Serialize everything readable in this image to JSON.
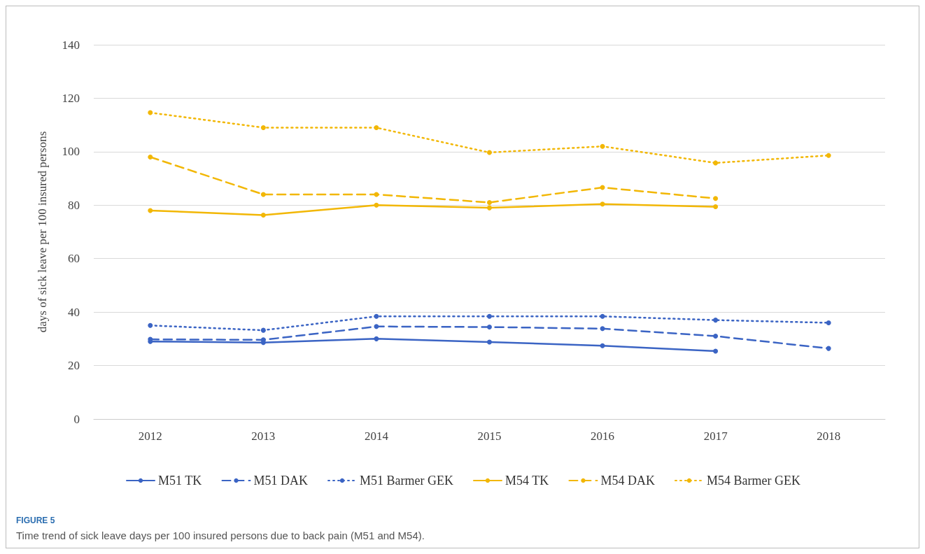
{
  "chart_data": {
    "type": "line",
    "title": "FIGURE 5",
    "subtitle": "Time trend of sick leave days per 100 insured persons due to back pain (M51 and M54).",
    "ylabel": "days of sick leave per 100 insured persons",
    "categories": [
      "2012",
      "2013",
      "2014",
      "2015",
      "2016",
      "2017",
      "2018"
    ],
    "ylim": [
      0,
      140
    ],
    "yticks": [
      0,
      20,
      40,
      60,
      80,
      100,
      120,
      140
    ],
    "grid": "y",
    "legend": "bottom",
    "marker": "circle",
    "series": [
      {
        "name": "M51 TK",
        "color": "#3b64c4",
        "line_style": "solid",
        "values": [
          29,
          28.6,
          30,
          28.8,
          27.4,
          25.4,
          null
        ]
      },
      {
        "name": "M51 DAK",
        "color": "#3b64c4",
        "line_style": "dashed",
        "values": [
          29.8,
          29.6,
          34.6,
          34.4,
          33.8,
          31,
          26.4
        ]
      },
      {
        "name": "M51 Barmer GEK",
        "color": "#3b64c4",
        "line_style": "dotted",
        "values": [
          35,
          33.2,
          38.4,
          38.4,
          38.4,
          37,
          36
        ]
      },
      {
        "name": "M54 TK",
        "color": "#f2b705",
        "line_style": "solid",
        "values": [
          78,
          76.3,
          80,
          79,
          80.4,
          79.4,
          null
        ]
      },
      {
        "name": "M54 DAK",
        "color": "#f2b705",
        "line_style": "dashed",
        "values": [
          98,
          84,
          84,
          81,
          86.6,
          82.5,
          null
        ]
      },
      {
        "name": "M54 Barmer GEK",
        "color": "#f2b705",
        "line_style": "dotted",
        "values": [
          114.6,
          109,
          109,
          99.7,
          102,
          95.8,
          98.6
        ]
      }
    ]
  }
}
